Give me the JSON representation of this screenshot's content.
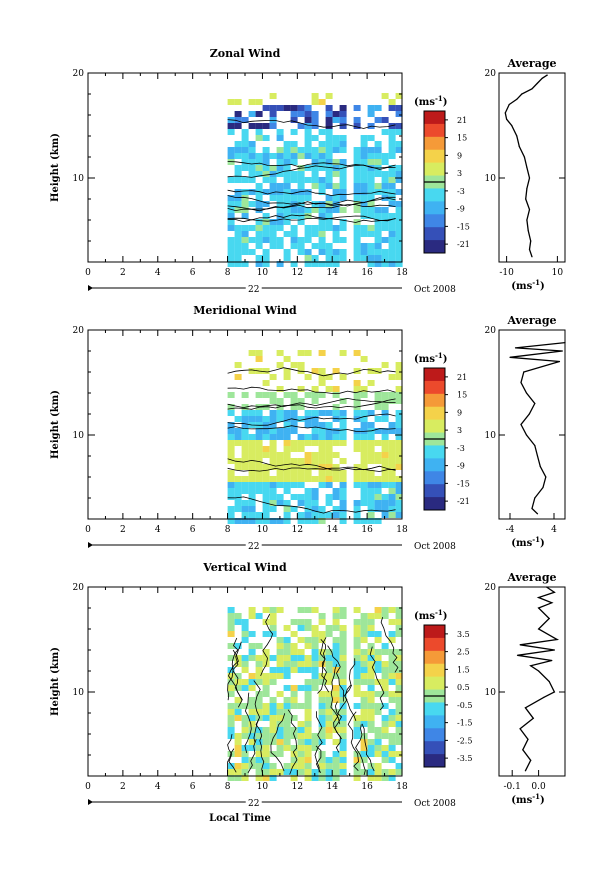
{
  "chart_data": [
    {
      "type": "heatmap",
      "title": "Zonal Wind",
      "ylabel": "Height (km)",
      "ylim": [
        2,
        20
      ],
      "xlim": [
        0,
        18
      ],
      "x_ticks": [
        "0",
        "2",
        "4",
        "6",
        "8",
        "10",
        "12",
        "14",
        "16",
        "18"
      ],
      "y_ticks": [
        "10",
        "20"
      ],
      "date_day": "22",
      "date_label": "Oct 2008",
      "data_start_hour": 8,
      "gap_hour": 14.8,
      "colorbar": {
        "unit": "(ms",
        "unit_exp": "-1",
        "unit_close": ")",
        "ticks": [
          "21",
          "15",
          "9",
          "3",
          "-3",
          "-9",
          "-15",
          "-21"
        ],
        "values": [
          21,
          15,
          9,
          3,
          -3,
          -9,
          -15,
          -21
        ],
        "range": [
          -24,
          24
        ],
        "zero_line": 0
      },
      "profile": {
        "title": "Average",
        "xlabel": "(ms",
        "xlabel_exp": "-1",
        "xlabel_close": ")",
        "xlim": [
          -13,
          13
        ],
        "x_ticks": [
          "-10",
          "10"
        ],
        "x_tick_values": [
          -10,
          10
        ],
        "y_ticks": [
          "10",
          "20"
        ],
        "points": [
          [
            0.0,
            2.5
          ],
          [
            -1.0,
            3.2
          ],
          [
            -0.5,
            4.0
          ],
          [
            -1.5,
            5.0
          ],
          [
            -2.0,
            6.0
          ],
          [
            -1.0,
            7.0
          ],
          [
            -2.5,
            8.0
          ],
          [
            -2.0,
            9.0
          ],
          [
            -1.0,
            10.0
          ],
          [
            -2.0,
            11.0
          ],
          [
            -3.0,
            12.0
          ],
          [
            -5.0,
            13.0
          ],
          [
            -6.0,
            14.0
          ],
          [
            -8.0,
            15.0
          ],
          [
            -10.0,
            15.6
          ],
          [
            -10.5,
            16.2
          ],
          [
            -9.0,
            17.0
          ],
          [
            -6.0,
            17.5
          ],
          [
            -4.0,
            18.0
          ],
          [
            0.0,
            18.5
          ],
          [
            2.0,
            19.0
          ],
          [
            4.0,
            19.5
          ],
          [
            6.0,
            19.8
          ]
        ]
      }
    },
    {
      "type": "heatmap",
      "title": "Meridional Wind",
      "ylabel": "Height (km)",
      "ylim": [
        2,
        20
      ],
      "xlim": [
        0,
        18
      ],
      "x_ticks": [
        "0",
        "2",
        "4",
        "6",
        "8",
        "10",
        "12",
        "14",
        "16",
        "18"
      ],
      "y_ticks": [
        "10",
        "20"
      ],
      "date_day": "22",
      "date_label": "Oct 2008",
      "data_start_hour": 8,
      "gap_hour": 14.8,
      "colorbar": {
        "unit": "(ms",
        "unit_exp": "-1",
        "unit_close": ")",
        "ticks": [
          "21",
          "15",
          "9",
          "3",
          "-3",
          "-9",
          "-15",
          "-21"
        ],
        "values": [
          21,
          15,
          9,
          3,
          -3,
          -9,
          -15,
          -21
        ],
        "range": [
          -24,
          24
        ],
        "zero_line": 0
      },
      "profile": {
        "title": "Average",
        "xlabel": "(ms",
        "xlabel_exp": "-1",
        "xlabel_close": ")",
        "xlim": [
          -6,
          6
        ],
        "x_ticks": [
          "-4",
          "4"
        ],
        "x_tick_values": [
          -4,
          4
        ],
        "y_ticks": [
          "10",
          "20"
        ],
        "points": [
          [
            1.0,
            2.5
          ],
          [
            0.0,
            3.0
          ],
          [
            0.5,
            4.0
          ],
          [
            2.0,
            5.0
          ],
          [
            2.5,
            6.0
          ],
          [
            1.5,
            7.0
          ],
          [
            1.0,
            8.0
          ],
          [
            0.5,
            9.0
          ],
          [
            -1.0,
            10.0
          ],
          [
            -2.0,
            11.0
          ],
          [
            -0.5,
            12.0
          ],
          [
            0.5,
            13.0
          ],
          [
            -1.0,
            14.0
          ],
          [
            -2.0,
            15.0
          ],
          [
            -1.5,
            16.0
          ],
          [
            5.0,
            17.0
          ],
          [
            -4.0,
            17.4
          ],
          [
            5.5,
            18.0
          ],
          [
            -3.0,
            18.3
          ],
          [
            6.0,
            18.8
          ]
        ]
      }
    },
    {
      "type": "heatmap",
      "title": "Vertical Wind",
      "ylabel": "Height (km)",
      "xlabel": "Local Time",
      "ylim": [
        2,
        20
      ],
      "xlim": [
        0,
        18
      ],
      "x_ticks": [
        "0",
        "2",
        "4",
        "6",
        "8",
        "10",
        "12",
        "14",
        "16",
        "18"
      ],
      "y_ticks": [
        "10",
        "20"
      ],
      "date_day": "22",
      "date_label": "Oct 2008",
      "data_start_hour": 8,
      "gap_hour": 14.8,
      "colorbar": {
        "unit": "(ms",
        "unit_exp": "-1",
        "unit_close": ")",
        "ticks": [
          "3.5",
          "2.5",
          "1.5",
          "0.5",
          "-0.5",
          "-1.5",
          "-2.5",
          "-3.5"
        ],
        "values": [
          3.5,
          2.5,
          1.5,
          0.5,
          -0.5,
          -1.5,
          -2.5,
          -3.5
        ],
        "range": [
          -4,
          4
        ],
        "zero_line": 0
      },
      "profile": {
        "title": "Average",
        "xlabel": "(ms",
        "xlabel_exp": "-1",
        "xlabel_close": ")",
        "xlim": [
          -0.15,
          0.1
        ],
        "x_ticks": [
          "-0.1",
          "0.0"
        ],
        "x_tick_values": [
          -0.1,
          0.0
        ],
        "y_ticks": [
          "10",
          "20"
        ],
        "points": [
          [
            -0.05,
            2.5
          ],
          [
            -0.03,
            3.5
          ],
          [
            -0.06,
            4.5
          ],
          [
            -0.04,
            5.5
          ],
          [
            -0.07,
            6.5
          ],
          [
            -0.02,
            7.5
          ],
          [
            -0.05,
            8.5
          ],
          [
            0.02,
            9.5
          ],
          [
            0.06,
            10.0
          ],
          [
            0.04,
            11.0
          ],
          [
            0.0,
            12.0
          ],
          [
            -0.03,
            12.5
          ],
          [
            0.05,
            13.0
          ],
          [
            -0.08,
            13.5
          ],
          [
            0.06,
            14.0
          ],
          [
            -0.07,
            14.5
          ],
          [
            0.07,
            15.0
          ],
          [
            0.0,
            16.0
          ],
          [
            0.04,
            17.0
          ],
          [
            0.0,
            18.0
          ],
          [
            0.05,
            18.5
          ],
          [
            0.0,
            19.0
          ],
          [
            0.06,
            19.5
          ],
          [
            0.03,
            20.0
          ]
        ]
      }
    }
  ]
}
